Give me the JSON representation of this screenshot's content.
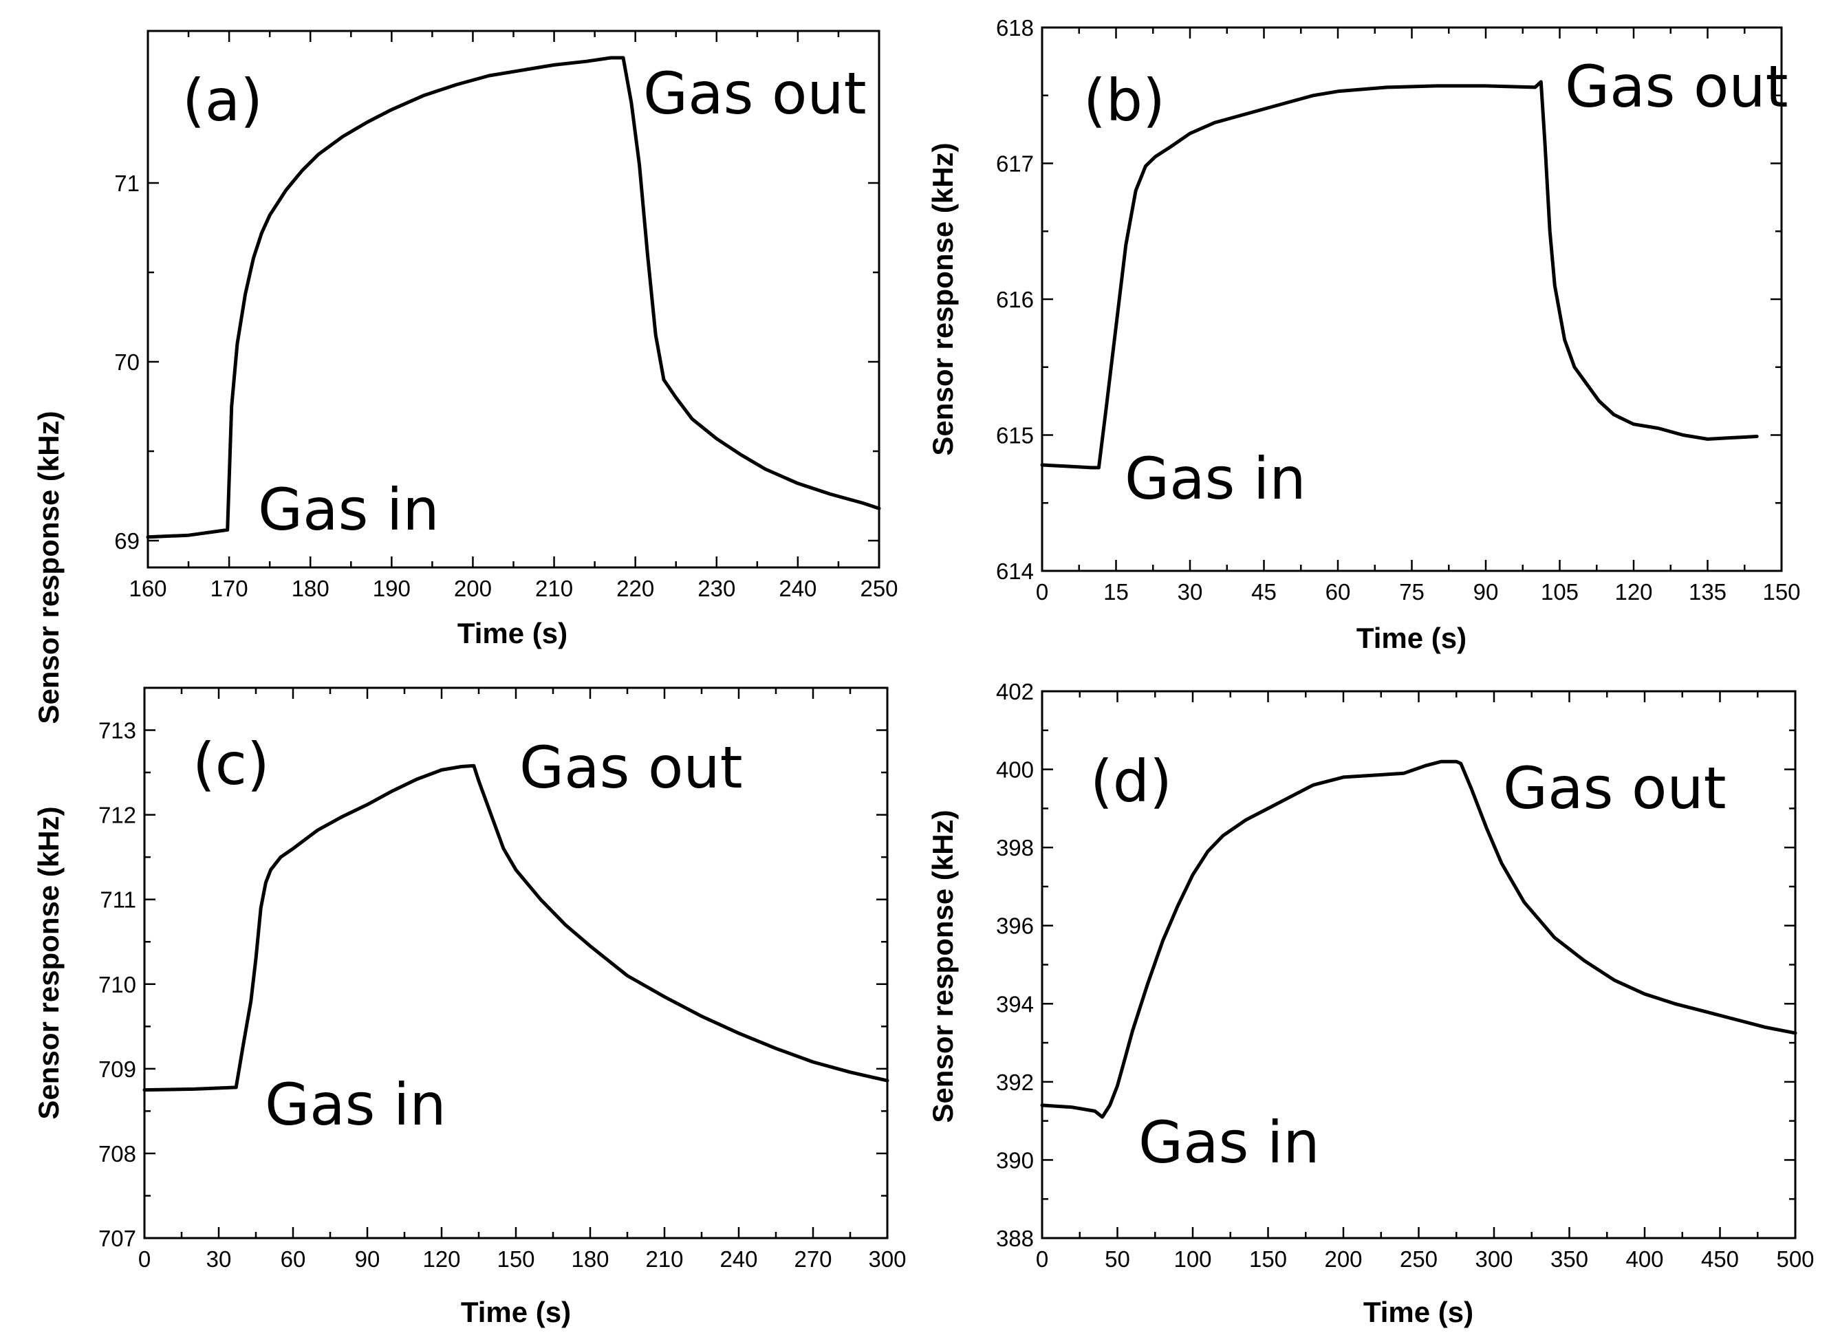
{
  "chart_data": [
    {
      "panel": "(a)",
      "type": "line",
      "xlabel": "Time (s)",
      "ylabel": "Sensor response (kHz)",
      "xlim": [
        160,
        250
      ],
      "ylim": [
        68.85,
        71.85
      ],
      "xticks": [
        160,
        170,
        180,
        190,
        200,
        210,
        220,
        230,
        240,
        250
      ],
      "yticks": [
        69,
        70,
        71
      ],
      "gas_in_label": "Gas in",
      "gas_out_label": "Gas out",
      "series": [
        {
          "name": "response",
          "x": [
            160,
            165,
            169.8,
            170.3,
            171,
            172,
            173,
            174,
            175,
            177,
            179,
            181,
            184,
            187,
            190,
            194,
            198,
            202,
            206,
            210,
            214,
            217,
            218.5,
            219.5,
            220.5,
            221.5,
            222.5,
            223.5,
            225,
            227,
            230,
            233,
            236,
            240,
            244,
            248,
            250
          ],
          "y": [
            69.02,
            69.03,
            69.06,
            69.75,
            70.1,
            70.38,
            70.58,
            70.72,
            70.82,
            70.96,
            71.07,
            71.16,
            71.26,
            71.34,
            71.41,
            71.49,
            71.55,
            71.6,
            71.63,
            71.66,
            71.68,
            71.7,
            71.7,
            71.45,
            71.1,
            70.6,
            70.15,
            69.9,
            69.8,
            69.68,
            69.57,
            69.48,
            69.4,
            69.32,
            69.26,
            69.21,
            69.18
          ]
        }
      ]
    },
    {
      "panel": "(b)",
      "type": "line",
      "xlabel": "Time (s)",
      "ylabel": "Sensor response (kHz)",
      "xlim": [
        0,
        150
      ],
      "ylim": [
        614,
        618
      ],
      "xticks": [
        0,
        15,
        30,
        45,
        60,
        75,
        90,
        105,
        120,
        135,
        150
      ],
      "yticks": [
        614,
        615,
        616,
        617,
        618
      ],
      "gas_in_label": "Gas in",
      "gas_out_label": "Gas out",
      "series": [
        {
          "name": "response",
          "x": [
            0,
            5,
            10,
            11.5,
            13,
            15,
            17,
            19,
            21,
            23,
            26,
            30,
            35,
            40,
            45,
            50,
            55,
            60,
            70,
            80,
            90,
            100,
            101.2,
            102,
            103,
            104,
            106,
            108,
            110,
            113,
            116,
            120,
            125,
            130,
            135,
            140,
            145
          ],
          "y": [
            614.78,
            614.77,
            614.76,
            614.76,
            615.2,
            615.8,
            616.4,
            616.8,
            616.98,
            617.05,
            617.12,
            617.22,
            617.3,
            617.35,
            617.4,
            617.45,
            617.5,
            617.53,
            617.56,
            617.57,
            617.57,
            617.56,
            617.6,
            617.15,
            616.5,
            616.1,
            615.7,
            615.5,
            615.4,
            615.25,
            615.15,
            615.08,
            615.05,
            615.0,
            614.97,
            614.98,
            614.99
          ]
        }
      ]
    },
    {
      "panel": "(c)",
      "type": "line",
      "xlabel": "Time (s)",
      "ylabel": "Sensor response (kHz)",
      "xlim": [
        0,
        300
      ],
      "ylim": [
        707,
        713.5
      ],
      "xticks": [
        0,
        30,
        60,
        90,
        120,
        150,
        180,
        210,
        240,
        270,
        300
      ],
      "yticks": [
        707,
        708,
        709,
        710,
        711,
        712,
        713
      ],
      "gas_in_label": "Gas in",
      "gas_out_label": "Gas out",
      "series": [
        {
          "name": "response",
          "x": [
            0,
            20,
            37,
            40,
            43,
            45,
            47,
            49,
            51,
            55,
            60,
            70,
            80,
            90,
            100,
            110,
            120,
            128,
            133,
            135,
            140,
            145,
            150,
            160,
            170,
            180,
            195,
            210,
            225,
            240,
            255,
            270,
            285,
            300
          ],
          "y": [
            708.75,
            708.76,
            708.78,
            709.3,
            709.8,
            710.3,
            710.9,
            711.2,
            711.35,
            711.5,
            711.6,
            711.82,
            711.98,
            712.12,
            712.28,
            712.42,
            712.53,
            712.57,
            712.58,
            712.4,
            712.0,
            711.6,
            711.35,
            711.0,
            710.7,
            710.45,
            710.1,
            709.85,
            709.62,
            709.42,
            709.24,
            709.08,
            708.96,
            708.86
          ]
        }
      ]
    },
    {
      "panel": "(d)",
      "type": "line",
      "xlabel": "Time (s)",
      "ylabel": "Sensor response (kHz)",
      "xlim": [
        0,
        500
      ],
      "ylim": [
        388,
        402
      ],
      "xticks": [
        0,
        50,
        100,
        150,
        200,
        250,
        300,
        350,
        400,
        450,
        500
      ],
      "yticks": [
        388,
        390,
        392,
        394,
        396,
        398,
        400,
        402
      ],
      "gas_in_label": "Gas in",
      "gas_out_label": "Gas out",
      "series": [
        {
          "name": "response",
          "x": [
            0,
            20,
            35,
            40,
            45,
            50,
            55,
            60,
            70,
            80,
            90,
            100,
            110,
            120,
            135,
            150,
            165,
            180,
            200,
            220,
            240,
            255,
            265,
            275,
            278,
            285,
            295,
            305,
            320,
            340,
            360,
            380,
            400,
            420,
            440,
            460,
            480,
            500
          ],
          "y": [
            391.4,
            391.35,
            391.25,
            391.1,
            391.4,
            391.9,
            392.6,
            393.3,
            394.5,
            395.6,
            396.5,
            397.3,
            397.9,
            398.3,
            398.7,
            399.0,
            399.3,
            399.6,
            399.8,
            399.85,
            399.9,
            400.1,
            400.2,
            400.2,
            400.15,
            399.5,
            398.5,
            397.6,
            396.6,
            395.7,
            395.1,
            394.6,
            394.25,
            394.0,
            393.8,
            393.6,
            393.4,
            393.25
          ]
        }
      ]
    }
  ]
}
